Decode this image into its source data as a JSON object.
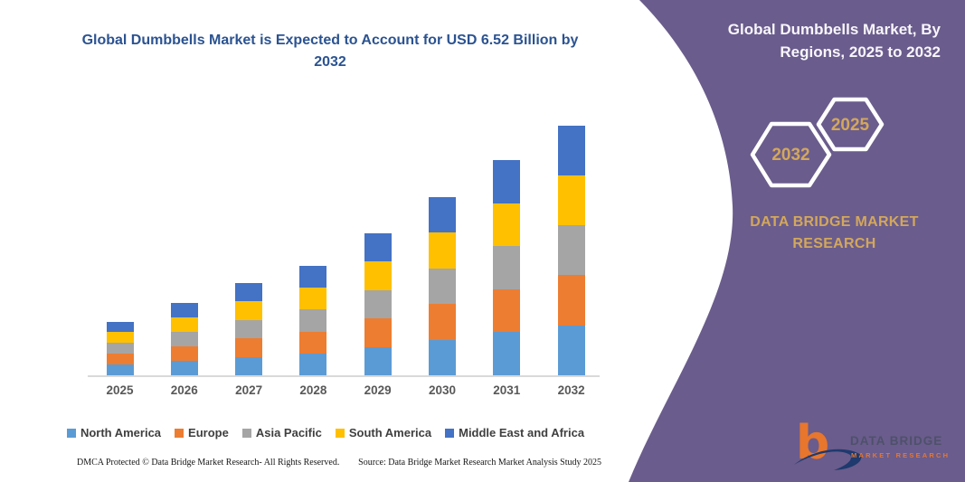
{
  "theme": {
    "purple": "#6A5C8C",
    "gold": "#D3A75C",
    "navy": "#2B5391",
    "axisgray": "#D9D9D9",
    "labelgray": "#595959",
    "legendtext": "#3F3F3F"
  },
  "left_panel": {
    "title": "Global Dumbbells Market is Expected to Account for USD 6.52 Billion by 2032",
    "footer": {
      "dmca": "DMCA Protected © Data Bridge Market Research-  All Rights Reserved.",
      "source": "Source: Data Bridge Market Research  Market Analysis Study 2025"
    }
  },
  "right_panel": {
    "title": "Global Dumbbells Market, By Regions, 2025 to 2032",
    "hexagons": [
      {
        "label": "2032"
      },
      {
        "label": "2025"
      }
    ],
    "brand": {
      "line1": "DATA BRIDGE MARKET",
      "line2": "RESEARCH"
    },
    "logo": {
      "mark": "b",
      "text_top": "DATA BRIDGE",
      "text_bottom": "MARKET RESEARCH"
    }
  },
  "chart_data": {
    "type": "bar",
    "stacked": true,
    "title": "Global Dumbbells Market is Expected to Account for USD 6.52 Billion by 2032",
    "xlabel": "",
    "ylabel": "",
    "unit": "USD Billion",
    "grid": false,
    "y_axis_visible": false,
    "legend_position": "bottom",
    "categories": [
      "2025",
      "2026",
      "2027",
      "2028",
      "2029",
      "2030",
      "2031",
      "2032"
    ],
    "totals": [
      1.4,
      1.9,
      2.4,
      2.85,
      3.7,
      4.65,
      5.6,
      6.52
    ],
    "ylim": [
      0,
      7
    ],
    "series": [
      {
        "name": "North America",
        "color": "#5B9BD5",
        "values": [
          0.28,
          0.38,
          0.48,
          0.57,
          0.74,
          0.93,
          1.12,
          1.3
        ]
      },
      {
        "name": "Europe",
        "color": "#ED7D31",
        "values": [
          0.28,
          0.38,
          0.48,
          0.57,
          0.74,
          0.93,
          1.12,
          1.3
        ]
      },
      {
        "name": "Asia Pacific",
        "color": "#A5A5A5",
        "values": [
          0.28,
          0.38,
          0.48,
          0.57,
          0.74,
          0.93,
          1.12,
          1.3
        ]
      },
      {
        "name": "South America",
        "color": "#FFC000",
        "values": [
          0.28,
          0.38,
          0.48,
          0.57,
          0.74,
          0.93,
          1.12,
          1.3
        ]
      },
      {
        "name": "Middle East and Africa",
        "color": "#4472C4",
        "values": [
          0.28,
          0.38,
          0.48,
          0.57,
          0.74,
          0.93,
          1.12,
          1.3
        ]
      }
    ]
  }
}
